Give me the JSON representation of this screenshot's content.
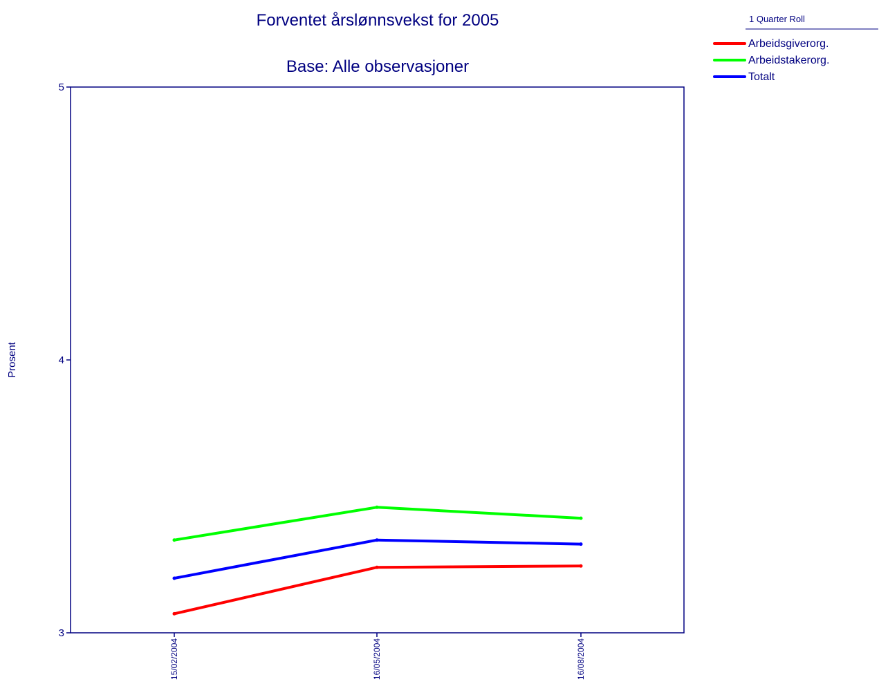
{
  "chart_data": {
    "type": "line",
    "title": "Forventet årslønnsvekst for 2005",
    "subtitle": "Base: Alle observasjoner",
    "ylabel": "Prosent",
    "xlabel": "",
    "ylim": [
      3,
      5
    ],
    "yticks": [
      "3",
      "4",
      "5"
    ],
    "categories": [
      "15/02/2004",
      "16/05/2004",
      "16/08/2004"
    ],
    "legend_title": "1 Quarter Roll",
    "legend_position": "top-right",
    "grid": false,
    "series": [
      {
        "name": "Arbeidsgiverorg.",
        "color": "#ff0000",
        "values": [
          3.07,
          3.24,
          3.245
        ]
      },
      {
        "name": "Arbeidstakerorg.",
        "color": "#00ff00",
        "values": [
          3.34,
          3.46,
          3.42
        ]
      },
      {
        "name": "Totalt",
        "color": "#0000ff",
        "values": [
          3.2,
          3.34,
          3.325
        ]
      }
    ]
  }
}
